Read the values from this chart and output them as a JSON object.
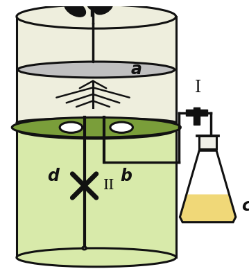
{
  "bg_color": "#ffffff",
  "upper_cylinder_color": "#eeeedd",
  "lower_cylinder_color": "#d8eaaa",
  "separator_disk_color": "#7a9e3a",
  "gray_disk_color": "#c0c0c0",
  "flask_liquid_color": "#f0d878",
  "flask_color": "#f0f0e8",
  "label_a": "a",
  "label_b": "b",
  "label_c": "c",
  "label_d": "d",
  "label_I": "I",
  "label_II": "II",
  "line_color": "#111111",
  "line_width": 2.2
}
